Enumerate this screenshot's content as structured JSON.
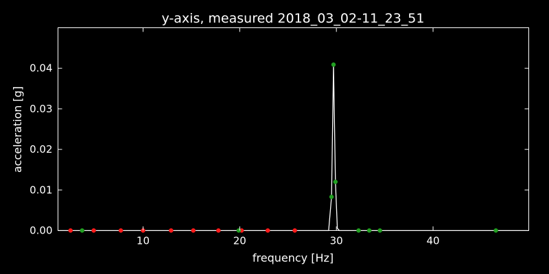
{
  "chart_data": {
    "type": "line",
    "title": "y-axis, measured 2018_03_02-11_23_51",
    "xlabel": "frequency [Hz]",
    "ylabel": "acceleration [g]",
    "xlim": [
      1.2,
      49.9
    ],
    "ylim": [
      0,
      0.05
    ],
    "xticks": [
      "10",
      "20",
      "30",
      "40"
    ],
    "yticks": [
      "0.00",
      "0.01",
      "0.02",
      "0.03",
      "0.04"
    ],
    "grid": false,
    "colors": {
      "background": "#000000",
      "axes": "#ffffff",
      "line": "#ffffff",
      "red_markers": "#ff1a1a",
      "green_markers": "#22a022"
    },
    "series": [
      {
        "type": "line",
        "x": [
          1.2,
          29.2,
          29.5,
          29.7,
          29.9,
          30.1,
          30.3,
          49.9
        ],
        "y": [
          0,
          0,
          0.0083,
          0.0409,
          0.012,
          0.0005,
          0,
          0
        ]
      },
      {
        "type": "scatter",
        "color_key": "red_markers",
        "x": [
          2.5,
          4.9,
          7.7,
          10.0,
          12.9,
          15.2,
          17.8,
          20.2,
          22.9,
          25.7
        ],
        "y": [
          0,
          0,
          0,
          0,
          0,
          0,
          0,
          0,
          0,
          0
        ]
      },
      {
        "type": "scatter",
        "color_key": "green_markers",
        "x": [
          3.7,
          19.9,
          29.5,
          29.7,
          29.9,
          32.3,
          33.4,
          34.5,
          46.5
        ],
        "y": [
          0,
          0,
          0.0083,
          0.0409,
          0.012,
          0,
          0,
          0,
          0
        ]
      }
    ]
  }
}
